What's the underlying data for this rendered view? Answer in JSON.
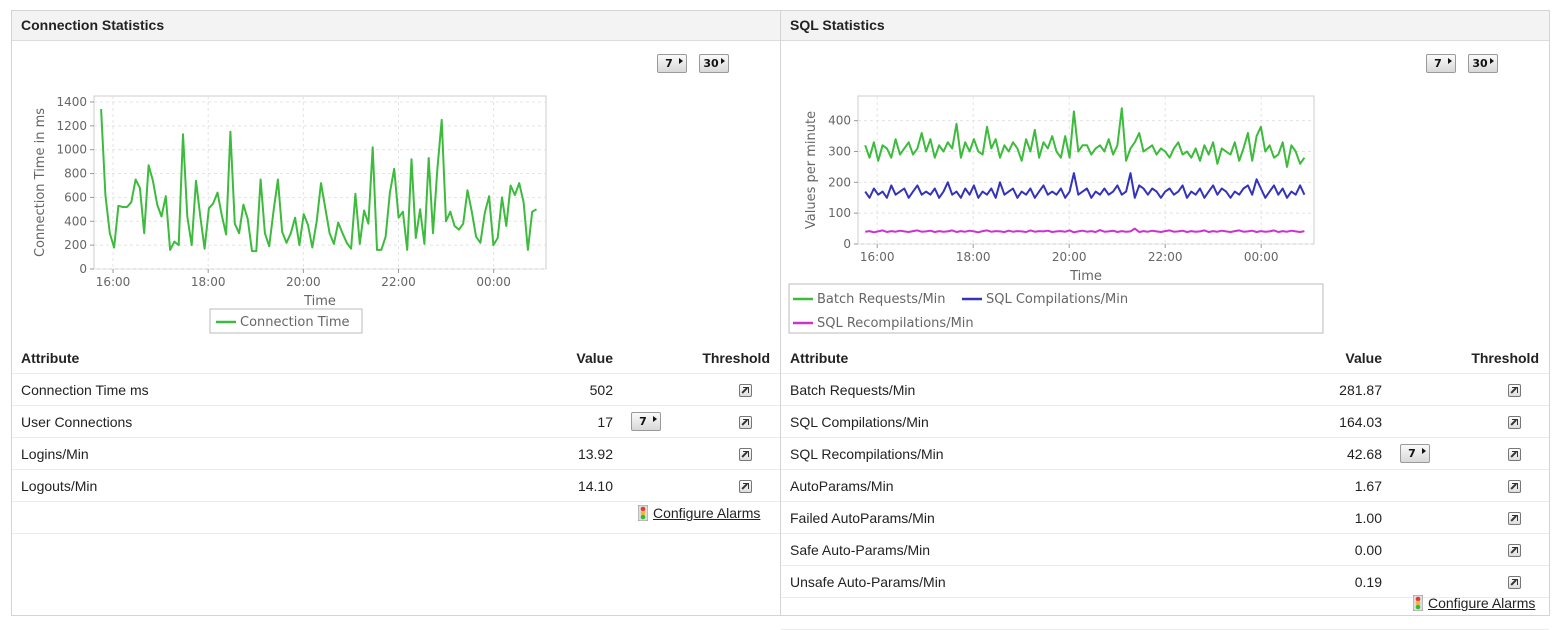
{
  "left": {
    "title": "Connection Statistics",
    "btn7": "7",
    "btn30": "30",
    "chart": {
      "ylabel": "Connection Time in ms",
      "xlabel": "Time",
      "legend": [
        "Connection Time"
      ]
    },
    "table": {
      "headers": [
        "Attribute",
        "Value",
        "Threshold"
      ],
      "rows": [
        {
          "attr": "Connection Time ms",
          "value": "502",
          "has7": false
        },
        {
          "attr": "User Connections",
          "value": "17",
          "has7": true
        },
        {
          "attr": "Logins/Min",
          "value": "13.92",
          "has7": false
        },
        {
          "attr": "Logouts/Min",
          "value": "14.10",
          "has7": false
        }
      ],
      "configure": "Configure Alarms"
    }
  },
  "right": {
    "title": "SQL Statistics",
    "btn7": "7",
    "btn30": "30",
    "chart": {
      "ylabel": "Values per minute",
      "xlabel": "Time",
      "legend": [
        "Batch Requests/Min",
        "SQL Compilations/Min",
        "SQL Recompilations/Min"
      ]
    },
    "table": {
      "headers": [
        "Attribute",
        "Value",
        "Threshold"
      ],
      "rows": [
        {
          "attr": "Batch Requests/Min",
          "value": "281.87",
          "has7": false
        },
        {
          "attr": "SQL Compilations/Min",
          "value": "164.03",
          "has7": false
        },
        {
          "attr": "SQL Recompilations/Min",
          "value": "42.68",
          "has7": true
        },
        {
          "attr": "AutoParams/Min",
          "value": "1.67",
          "has7": false
        },
        {
          "attr": "Failed AutoParams/Min",
          "value": "1.00",
          "has7": false
        },
        {
          "attr": "Safe Auto-Params/Min",
          "value": "0.00",
          "has7": false
        },
        {
          "attr": "Unsafe Auto-Params/Min",
          "value": "0.19",
          "has7": false
        }
      ],
      "configure": "Configure Alarms"
    }
  },
  "chart_data": [
    {
      "type": "line",
      "title": "",
      "xlabel": "Time",
      "ylabel": "Connection Time in ms",
      "x_ticks": [
        "16:00",
        "18:00",
        "20:00",
        "22:00",
        "00:00"
      ],
      "x_range_hours": [
        15.6,
        25.1
      ],
      "ylim": [
        0,
        1450
      ],
      "y_ticks": [
        0,
        200,
        400,
        600,
        800,
        1000,
        1200,
        1400
      ],
      "grid": true,
      "legend_position": "bottom",
      "series": [
        {
          "name": "Connection Time",
          "color": "#3dbb3d",
          "values": [
            1340,
            620,
            300,
            180,
            530,
            520,
            520,
            560,
            750,
            680,
            300,
            870,
            740,
            540,
            440,
            610,
            160,
            230,
            200,
            1130,
            440,
            200,
            740,
            440,
            170,
            510,
            550,
            640,
            450,
            290,
            1150,
            380,
            300,
            540,
            420,
            150,
            150,
            750,
            300,
            190,
            490,
            750,
            310,
            220,
            300,
            430,
            200,
            460,
            370,
            180,
            400,
            720,
            510,
            300,
            210,
            390,
            300,
            220,
            170,
            630,
            210,
            490,
            380,
            1020,
            160,
            160,
            270,
            640,
            840,
            430,
            480,
            160,
            920,
            260,
            500,
            210,
            930,
            300,
            830,
            1250,
            400,
            480,
            360,
            330,
            380,
            660,
            480,
            270,
            220,
            470,
            610,
            200,
            260,
            600,
            360,
            700,
            620,
            720,
            560,
            160,
            480,
            500
          ]
        }
      ]
    },
    {
      "type": "line",
      "title": "",
      "xlabel": "Time",
      "ylabel": "Values per minute",
      "x_ticks": [
        "16:00",
        "18:00",
        "20:00",
        "22:00",
        "00:00"
      ],
      "x_range_hours": [
        15.6,
        25.1
      ],
      "ylim": [
        0,
        480
      ],
      "y_ticks": [
        0,
        100,
        200,
        300,
        400
      ],
      "grid": true,
      "legend_position": "bottom",
      "series": [
        {
          "name": "Batch Requests/Min",
          "color": "#3dbb3d",
          "values": [
            320,
            280,
            330,
            270,
            320,
            310,
            280,
            340,
            290,
            310,
            330,
            290,
            310,
            360,
            300,
            340,
            280,
            320,
            300,
            330,
            310,
            390,
            280,
            330,
            300,
            340,
            300,
            290,
            380,
            310,
            340,
            280,
            320,
            300,
            330,
            310,
            270,
            340,
            300,
            370,
            280,
            330,
            310,
            350,
            300,
            280,
            350,
            280,
            430,
            300,
            320,
            320,
            290,
            310,
            320,
            300,
            340,
            290,
            320,
            440,
            270,
            310,
            330,
            360,
            300,
            310,
            320,
            290,
            310,
            300,
            280,
            310,
            330,
            290,
            300,
            280,
            310,
            270,
            320,
            290,
            330,
            260,
            310,
            300,
            290,
            330,
            270,
            310,
            360,
            270,
            350,
            380,
            300,
            320,
            280,
            290,
            330,
            250,
            320,
            300,
            260,
            280
          ]
        },
        {
          "name": "SQL Compilations/Min",
          "color": "#3333bb",
          "values": [
            170,
            150,
            180,
            160,
            170,
            150,
            190,
            160,
            170,
            180,
            150,
            170,
            190,
            160,
            170,
            160,
            180,
            150,
            170,
            200,
            160,
            170,
            150,
            180,
            160,
            190,
            150,
            170,
            160,
            180,
            150,
            200,
            160,
            170,
            180,
            150,
            170,
            160,
            180,
            150,
            170,
            190,
            160,
            170,
            160,
            180,
            150,
            170,
            230,
            160,
            170,
            180,
            150,
            170,
            160,
            180,
            160,
            170,
            190,
            160,
            170,
            230,
            150,
            190,
            180,
            160,
            180,
            170,
            150,
            170,
            180,
            160,
            170,
            190,
            150,
            170,
            160,
            180,
            150,
            170,
            190,
            160,
            180,
            170,
            150,
            170,
            160,
            180,
            190,
            160,
            210,
            180,
            150,
            170,
            190,
            160,
            180,
            150,
            170,
            160,
            190,
            160
          ]
        },
        {
          "name": "SQL Recompilations/Min",
          "color": "#cc33cc",
          "values": [
            40,
            42,
            38,
            41,
            44,
            39,
            42,
            40,
            43,
            41,
            39,
            42,
            44,
            40,
            41,
            43,
            39,
            42,
            40,
            41,
            44,
            39,
            42,
            40,
            43,
            41,
            38,
            42,
            44,
            40,
            42,
            41,
            39,
            43,
            40,
            42,
            41,
            39,
            44,
            40,
            42,
            41,
            43,
            39,
            41,
            42,
            40,
            44,
            38,
            41,
            43,
            40,
            42,
            39,
            45,
            40,
            41,
            43,
            39,
            42,
            40,
            41,
            50,
            39,
            42,
            40,
            43,
            41,
            39,
            42,
            44,
            40,
            41,
            43,
            39,
            42,
            40,
            41,
            44,
            39,
            42,
            40,
            43,
            41,
            39,
            42,
            44,
            40,
            41,
            43,
            39,
            42,
            40,
            41,
            44,
            39,
            42,
            40,
            43,
            41,
            39,
            42
          ]
        }
      ]
    }
  ]
}
